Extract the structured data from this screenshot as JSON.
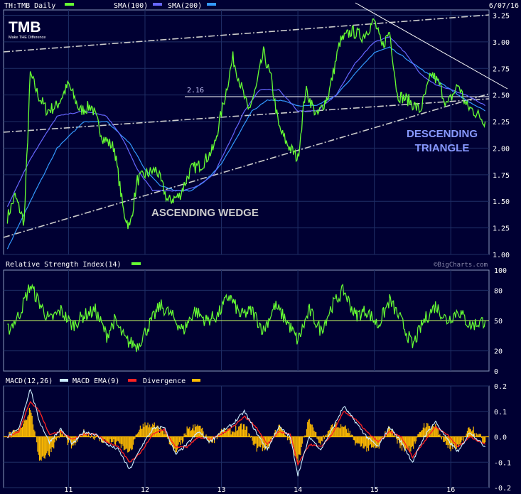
{
  "header": {
    "ticker_label": "TH:TMB Daily",
    "sma100_label": "SMA(100)",
    "sma200_label": "SMA(200)",
    "date": "6/07/16"
  },
  "logo": {
    "name": "TMB",
    "tagline": "Make THE Difference"
  },
  "watermark": "©BigCharts.com",
  "colors": {
    "background": "#000033",
    "price": "#66ff33",
    "sma100": "#6666ff",
    "sma200": "#3399ff",
    "macd": "#cceeff",
    "macd_ema": "#ff2222",
    "divergence": "#ffbb00",
    "trendline": "#cccccc"
  },
  "annotations": {
    "ascending_wedge": "ASCENDING WEDGE",
    "descending_triangle_1": "DESCENDING",
    "descending_triangle_2": "TRIANGLE",
    "level_label": "2.16"
  },
  "chart_data": [
    {
      "type": "line",
      "name": "price",
      "x_ticks": [
        "11",
        "12",
        "13",
        "14",
        "15",
        "16"
      ],
      "y_ticks": [
        "1.00",
        "1.25",
        "1.50",
        "1.75",
        "2.00",
        "2.25",
        "2.50",
        "2.75",
        "3.00",
        "3.25"
      ],
      "ylim": [
        1.0,
        3.3
      ],
      "series": [
        {
          "name": "TH:TMB Daily",
          "x": [
            2010.2,
            2010.3,
            2010.42,
            2010.5,
            2010.6,
            2010.72,
            2010.85,
            2011.0,
            2011.15,
            2011.3,
            2011.45,
            2011.6,
            2011.72,
            2011.8,
            2011.9,
            2012.0,
            2012.15,
            2012.3,
            2012.45,
            2012.6,
            2012.75,
            2012.9,
            2013.05,
            2013.15,
            2013.25,
            2013.35,
            2013.45,
            2013.55,
            2013.65,
            2013.75,
            2013.85,
            2014.0,
            2014.1,
            2014.25,
            2014.4,
            2014.55,
            2014.7,
            2014.85,
            2015.0,
            2015.1,
            2015.2,
            2015.3,
            2015.45,
            2015.6,
            2015.75,
            2015.85,
            2015.95,
            2016.1,
            2016.2,
            2016.3,
            2016.45
          ],
          "values": [
            1.35,
            1.55,
            1.3,
            2.7,
            2.5,
            2.35,
            2.4,
            2.6,
            2.35,
            2.4,
            2.1,
            2.0,
            1.4,
            1.25,
            1.7,
            1.75,
            1.8,
            1.5,
            1.55,
            1.8,
            1.85,
            2.0,
            2.5,
            2.85,
            2.6,
            2.35,
            2.55,
            2.9,
            2.65,
            2.2,
            2.05,
            1.9,
            2.55,
            2.3,
            2.5,
            3.0,
            3.1,
            3.05,
            3.2,
            2.95,
            3.1,
            2.5,
            2.45,
            2.35,
            2.7,
            2.6,
            2.4,
            2.6,
            2.4,
            2.35,
            2.25
          ]
        },
        {
          "name": "SMA(100)",
          "x": [
            2010.2,
            2010.5,
            2010.85,
            2011.2,
            2011.5,
            2011.7,
            2011.9,
            2012.1,
            2012.3,
            2012.5,
            2012.7,
            2012.9,
            2013.1,
            2013.3,
            2013.5,
            2013.75,
            2014.0,
            2014.25,
            2014.5,
            2014.75,
            2015.0,
            2015.2,
            2015.4,
            2015.6,
            2015.8,
            2016.0,
            2016.2,
            2016.45
          ],
          "values": [
            1.45,
            1.9,
            2.3,
            2.35,
            2.3,
            2.1,
            1.8,
            1.6,
            1.6,
            1.6,
            1.65,
            1.75,
            2.05,
            2.35,
            2.55,
            2.55,
            2.35,
            2.35,
            2.5,
            2.8,
            3.0,
            3.05,
            2.9,
            2.7,
            2.6,
            2.55,
            2.5,
            2.4
          ]
        },
        {
          "name": "SMA(200)",
          "x": [
            2010.2,
            2010.5,
            2010.85,
            2011.2,
            2011.5,
            2011.8,
            2012.0,
            2012.2,
            2012.4,
            2012.6,
            2012.8,
            2013.0,
            2013.2,
            2013.4,
            2013.6,
            2013.8,
            2014.0,
            2014.25,
            2014.5,
            2014.75,
            2015.0,
            2015.2,
            2015.4,
            2015.6,
            2015.8,
            2016.0,
            2016.2,
            2016.45
          ],
          "values": [
            1.05,
            1.5,
            2.0,
            2.25,
            2.25,
            2.05,
            1.8,
            1.65,
            1.6,
            1.6,
            1.7,
            1.85,
            2.1,
            2.35,
            2.45,
            2.45,
            2.4,
            2.4,
            2.5,
            2.7,
            2.9,
            2.95,
            2.85,
            2.75,
            2.65,
            2.55,
            2.45,
            2.35
          ]
        }
      ]
    },
    {
      "type": "line",
      "name": "rsi",
      "title": "Relative Strength Index(14)",
      "y_ticks": [
        "0",
        "20",
        "50",
        "80",
        "100"
      ],
      "ylim": [
        0,
        100
      ],
      "reference_line": 50,
      "series": [
        {
          "name": "Relative Strength Index(14)",
          "x": [
            2010.2,
            2010.35,
            2010.5,
            2010.6,
            2010.75,
            2010.9,
            2011.05,
            2011.2,
            2011.35,
            2011.5,
            2011.6,
            2011.75,
            2011.9,
            2012.05,
            2012.2,
            2012.35,
            2012.5,
            2012.65,
            2012.8,
            2012.95,
            2013.1,
            2013.25,
            2013.4,
            2013.55,
            2013.7,
            2013.85,
            2014.0,
            2014.15,
            2014.3,
            2014.45,
            2014.6,
            2014.75,
            2014.9,
            2015.05,
            2015.2,
            2015.35,
            2015.5,
            2015.65,
            2015.8,
            2015.95,
            2016.1,
            2016.25,
            2016.45
          ],
          "values": [
            40,
            55,
            85,
            70,
            50,
            60,
            45,
            55,
            60,
            35,
            50,
            30,
            25,
            45,
            65,
            55,
            40,
            60,
            50,
            55,
            75,
            55,
            60,
            40,
            65,
            50,
            30,
            60,
            40,
            65,
            80,
            55,
            60,
            45,
            70,
            50,
            25,
            50,
            65,
            50,
            60,
            45,
            50
          ]
        }
      ]
    },
    {
      "type": "line",
      "name": "macd",
      "y_ticks": [
        "0.2",
        "0.1",
        "0.0",
        "-0.1",
        "-0.2"
      ],
      "ylim": [
        -0.2,
        0.2
      ],
      "legend": [
        "MACD(12,26)",
        "MACD EMA(9)",
        "Divergence"
      ],
      "series": [
        {
          "name": "MACD(12,26)",
          "x": [
            2010.2,
            2010.35,
            2010.5,
            2010.62,
            2010.75,
            2010.9,
            2011.05,
            2011.2,
            2011.35,
            2011.5,
            2011.65,
            2011.8,
            2011.95,
            2012.1,
            2012.25,
            2012.4,
            2012.55,
            2012.7,
            2012.85,
            2013.0,
            2013.15,
            2013.3,
            2013.45,
            2013.6,
            2013.75,
            2013.9,
            2014.0,
            2014.15,
            2014.3,
            2014.45,
            2014.6,
            2014.75,
            2014.9,
            2015.05,
            2015.2,
            2015.35,
            2015.5,
            2015.65,
            2015.8,
            2015.95,
            2016.1,
            2016.25,
            2016.45
          ],
          "values": [
            0.0,
            0.03,
            0.19,
            0.06,
            -0.02,
            0.03,
            -0.03,
            0.02,
            0.01,
            -0.03,
            -0.05,
            -0.13,
            -0.04,
            0.03,
            0.04,
            -0.07,
            -0.03,
            0.02,
            -0.02,
            0.02,
            0.05,
            0.1,
            0.02,
            -0.05,
            0.04,
            0.0,
            -0.15,
            0.0,
            -0.05,
            0.03,
            0.12,
            0.06,
            0.0,
            -0.04,
            0.04,
            -0.02,
            -0.1,
            0.0,
            0.06,
            -0.01,
            -0.06,
            0.02,
            -0.04
          ]
        },
        {
          "name": "MACD EMA(9)",
          "x": [
            2010.2,
            2010.35,
            2010.5,
            2010.62,
            2010.75,
            2010.9,
            2011.05,
            2011.2,
            2011.35,
            2011.5,
            2011.65,
            2011.8,
            2011.95,
            2012.1,
            2012.25,
            2012.4,
            2012.55,
            2012.7,
            2012.85,
            2013.0,
            2013.15,
            2013.3,
            2013.45,
            2013.6,
            2013.75,
            2013.9,
            2014.0,
            2014.15,
            2014.3,
            2014.45,
            2014.6,
            2014.75,
            2014.9,
            2015.05,
            2015.2,
            2015.35,
            2015.5,
            2015.65,
            2015.8,
            2015.95,
            2016.1,
            2016.25,
            2016.45
          ],
          "values": [
            0.0,
            0.02,
            0.14,
            0.1,
            0.01,
            0.02,
            -0.01,
            0.01,
            0.01,
            -0.02,
            -0.04,
            -0.1,
            -0.06,
            0.01,
            0.03,
            -0.04,
            -0.04,
            0.0,
            -0.01,
            0.01,
            0.04,
            0.08,
            0.04,
            -0.03,
            0.02,
            0.01,
            -0.11,
            -0.03,
            -0.04,
            0.01,
            0.1,
            0.07,
            0.02,
            -0.02,
            0.02,
            0.0,
            -0.08,
            -0.02,
            0.04,
            0.01,
            -0.04,
            0.0,
            -0.03
          ]
        }
      ]
    }
  ]
}
